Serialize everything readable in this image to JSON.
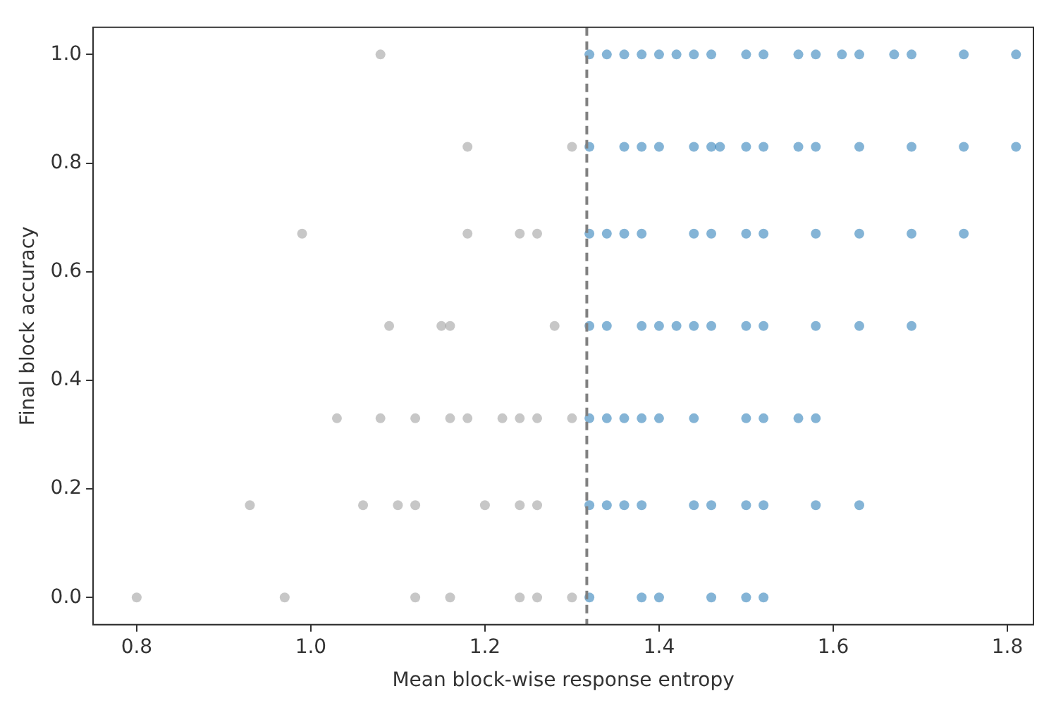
{
  "chart_data": {
    "type": "scatter",
    "xlabel": "Mean block-wise response entropy",
    "ylabel": "Final block accuracy",
    "xlim": [
      0.75,
      1.83
    ],
    "xticks": [
      0.8,
      {
        "value": 1,
        "label": "1.0"
      },
      1.2,
      1.4,
      1.6,
      1.8
    ],
    "ylim": [
      -0.05,
      1.05
    ],
    "yticks": [
      {
        "value": 0,
        "label": "0.0"
      },
      0.2,
      0.4,
      0.6,
      0.8,
      {
        "value": 1,
        "label": "1.0"
      }
    ],
    "grid": false,
    "legend": false,
    "marker": "circle",
    "ref_lines": [
      {
        "axis": "x",
        "value": 1.317,
        "color": "#808080",
        "line_style": "dashed"
      }
    ],
    "series": [
      {
        "color": "#999999",
        "x": [
          1.08,
          1.18,
          1.3,
          0.99,
          1.18,
          1.24,
          1.26,
          1.09,
          1.15,
          1.16,
          1.28,
          1.03,
          1.08,
          1.12,
          1.16,
          1.18,
          1.22,
          1.24,
          1.26,
          1.3,
          0.93,
          1.06,
          1.1,
          1.12,
          1.2,
          1.24,
          1.26,
          0.8,
          0.97,
          1.12,
          1.16,
          1.24,
          1.26,
          1.3
        ],
        "values": [
          1.0,
          0.83,
          0.83,
          0.67,
          0.67,
          0.67,
          0.67,
          0.5,
          0.5,
          0.5,
          0.5,
          0.33,
          0.33,
          0.33,
          0.33,
          0.33,
          0.33,
          0.33,
          0.33,
          0.33,
          0.17,
          0.17,
          0.17,
          0.17,
          0.17,
          0.17,
          0.17,
          0.0,
          0.0,
          0.0,
          0.0,
          0.0,
          0.0,
          0.0
        ]
      },
      {
        "color": "#1f77b4",
        "x": [
          1.32,
          1.34,
          1.36,
          1.38,
          1.4,
          1.42,
          1.44,
          1.46,
          1.5,
          1.52,
          1.56,
          1.58,
          1.61,
          1.63,
          1.67,
          1.69,
          1.75,
          1.81,
          1.32,
          1.36,
          1.38,
          1.4,
          1.44,
          1.46,
          1.47,
          1.5,
          1.52,
          1.56,
          1.58,
          1.63,
          1.69,
          1.75,
          1.81,
          1.32,
          1.34,
          1.36,
          1.38,
          1.44,
          1.46,
          1.5,
          1.52,
          1.58,
          1.63,
          1.69,
          1.75,
          1.32,
          1.34,
          1.38,
          1.4,
          1.42,
          1.44,
          1.46,
          1.5,
          1.52,
          1.58,
          1.63,
          1.69,
          1.32,
          1.34,
          1.36,
          1.38,
          1.4,
          1.44,
          1.5,
          1.52,
          1.56,
          1.58,
          1.32,
          1.34,
          1.36,
          1.38,
          1.44,
          1.46,
          1.5,
          1.52,
          1.58,
          1.63,
          1.32,
          1.38,
          1.4,
          1.46,
          1.5,
          1.52
        ],
        "values": [
          1.0,
          1.0,
          1.0,
          1.0,
          1.0,
          1.0,
          1.0,
          1.0,
          1.0,
          1.0,
          1.0,
          1.0,
          1.0,
          1.0,
          1.0,
          1.0,
          1.0,
          1.0,
          0.83,
          0.83,
          0.83,
          0.83,
          0.83,
          0.83,
          0.83,
          0.83,
          0.83,
          0.83,
          0.83,
          0.83,
          0.83,
          0.83,
          0.83,
          0.67,
          0.67,
          0.67,
          0.67,
          0.67,
          0.67,
          0.67,
          0.67,
          0.67,
          0.67,
          0.67,
          0.67,
          0.5,
          0.5,
          0.5,
          0.5,
          0.5,
          0.5,
          0.5,
          0.5,
          0.5,
          0.5,
          0.5,
          0.5,
          0.33,
          0.33,
          0.33,
          0.33,
          0.33,
          0.33,
          0.33,
          0.33,
          0.33,
          0.33,
          0.17,
          0.17,
          0.17,
          0.17,
          0.17,
          0.17,
          0.17,
          0.17,
          0.17,
          0.17,
          0.0,
          0.0,
          0.0,
          0.0,
          0.0,
          0.0
        ]
      }
    ]
  }
}
